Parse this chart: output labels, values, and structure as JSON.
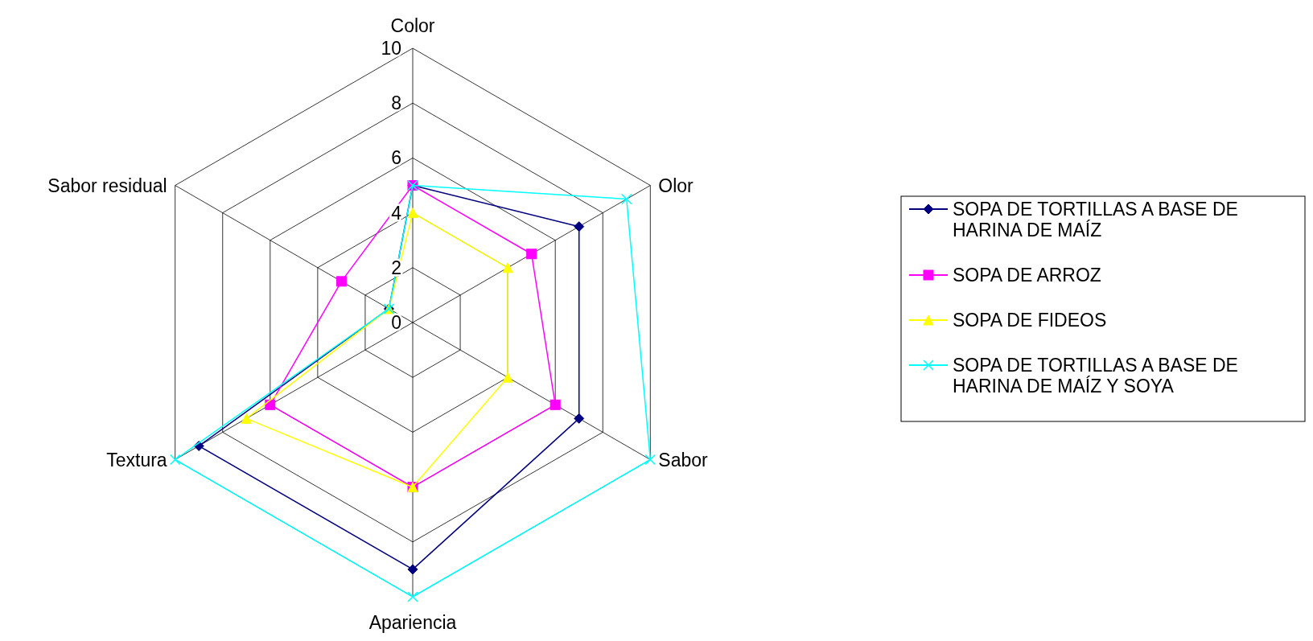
{
  "chart_data": {
    "type": "radar",
    "categories": [
      "Color",
      "Olor",
      "Sabor",
      "Apariencia",
      "Textura",
      "Sabor residual"
    ],
    "ylim": [
      0,
      10
    ],
    "yticks": [
      0,
      2,
      4,
      6,
      8,
      10
    ],
    "grid": true,
    "legend": "right",
    "series": [
      {
        "name": "SOPA DE TORTILLAS A BASE DE HARINA DE MAÍZ",
        "color": "#000080",
        "marker": "diamond",
        "values": [
          5,
          7,
          7,
          9,
          9,
          1
        ]
      },
      {
        "name": "SOPA DE ARROZ",
        "color": "#ff00ff",
        "marker": "square",
        "values": [
          5,
          5,
          6,
          6,
          6,
          3
        ]
      },
      {
        "name": "SOPA DE FIDEOS",
        "color": "#ffff00",
        "marker": "triangle",
        "values": [
          4,
          4,
          4,
          6,
          7,
          1
        ]
      },
      {
        "name": "SOPA DE TORTILLAS A BASE DE HARINA DE MAÍZ Y SOYA",
        "color": "#00ffff",
        "marker": "cross",
        "values": [
          5,
          9,
          10,
          10,
          10,
          1
        ]
      }
    ]
  }
}
